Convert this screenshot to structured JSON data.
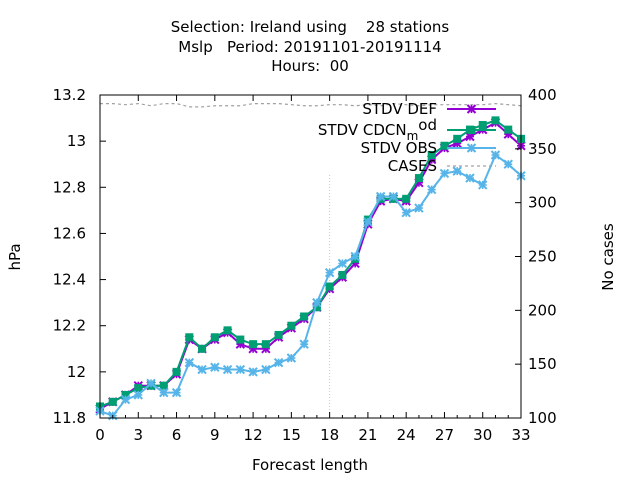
{
  "chart_data": {
    "type": "line",
    "title_lines": [
      "Selection: Ireland using    28 stations",
      "Mslp   Period: 20191101-20191114",
      "Hours:  00"
    ],
    "xlabel": "Forecast length",
    "ylabel": "hPa",
    "y2label": "No cases",
    "xlim": [
      0,
      33
    ],
    "ylim": [
      11.8,
      13.2
    ],
    "y2lim": [
      100,
      400
    ],
    "xticks": [
      0,
      3,
      6,
      9,
      12,
      15,
      18,
      21,
      24,
      27,
      30,
      33
    ],
    "xtick_labels": [
      "0",
      "3",
      "6",
      "9",
      "12",
      "15",
      "18",
      "21",
      "24",
      "27",
      "30",
      "33"
    ],
    "yticks": [
      11.8,
      12,
      12.2,
      12.4,
      12.6,
      12.8,
      13,
      13.2
    ],
    "ytick_labels": [
      "11.8",
      "12",
      "12.2",
      "12.4",
      "12.6",
      "12.8",
      "13",
      "13.2"
    ],
    "y2ticks": [
      100,
      150,
      200,
      250,
      300,
      350,
      400
    ],
    "y2tick_labels": [
      "100",
      "150",
      "200",
      "250",
      "300",
      "350",
      "400"
    ],
    "legend_position": "top-right",
    "x": [
      0,
      1,
      2,
      3,
      4,
      5,
      6,
      7,
      8,
      9,
      10,
      11,
      12,
      13,
      14,
      15,
      16,
      17,
      18,
      19,
      20,
      21,
      22,
      23,
      24,
      25,
      26,
      27,
      28,
      29,
      30,
      31,
      32,
      33
    ],
    "series": [
      {
        "name": "STDV DEF",
        "color": "#9400d3",
        "marker": "x",
        "axis": "y1",
        "values": [
          11.84,
          11.87,
          11.9,
          11.94,
          11.94,
          11.94,
          11.99,
          12.14,
          12.1,
          12.14,
          12.17,
          12.12,
          12.1,
          12.1,
          12.15,
          12.19,
          12.23,
          12.28,
          12.36,
          12.41,
          12.47,
          12.64,
          12.74,
          12.75,
          12.74,
          12.82,
          12.92,
          12.97,
          12.99,
          13.02,
          13.05,
          13.08,
          13.03,
          12.98
        ]
      },
      {
        "name": "STDV CDCN_mod",
        "name_main": "STDV CDCN",
        "name_sub": "m",
        "name_tail": "od",
        "color": "#009e73",
        "marker": "box",
        "axis": "y1",
        "values": [
          11.85,
          11.87,
          11.9,
          11.93,
          11.94,
          11.94,
          12.0,
          12.15,
          12.1,
          12.15,
          12.18,
          12.14,
          12.12,
          12.12,
          12.16,
          12.2,
          12.24,
          12.28,
          12.37,
          12.42,
          12.49,
          12.66,
          12.75,
          12.75,
          12.75,
          12.84,
          12.94,
          12.98,
          13.01,
          13.05,
          13.07,
          13.09,
          13.05,
          13.01
        ]
      },
      {
        "name": "STDV OBS",
        "color": "#56b4e9",
        "marker": "x",
        "axis": "y1",
        "values": [
          11.83,
          11.81,
          11.88,
          11.9,
          11.95,
          11.91,
          11.91,
          12.04,
          12.01,
          12.02,
          12.01,
          12.01,
          12.0,
          12.01,
          12.04,
          12.06,
          12.12,
          12.3,
          12.43,
          12.47,
          12.5,
          12.65,
          12.76,
          12.76,
          12.69,
          12.71,
          12.79,
          12.86,
          12.87,
          12.84,
          12.81,
          12.94,
          12.9,
          12.85
        ]
      },
      {
        "name": "CASES",
        "color": "#a0a0a0",
        "marker": "none",
        "dashed": true,
        "axis": "y2",
        "values": [
          392,
          392,
          391,
          392,
          390,
          392,
          392,
          389,
          389,
          390,
          390,
          390,
          392,
          392,
          392,
          391,
          390,
          390,
          391,
          391,
          390,
          391,
          390,
          392,
          391,
          390,
          391,
          391,
          391,
          391,
          391,
          392,
          391,
          390
        ]
      }
    ]
  }
}
